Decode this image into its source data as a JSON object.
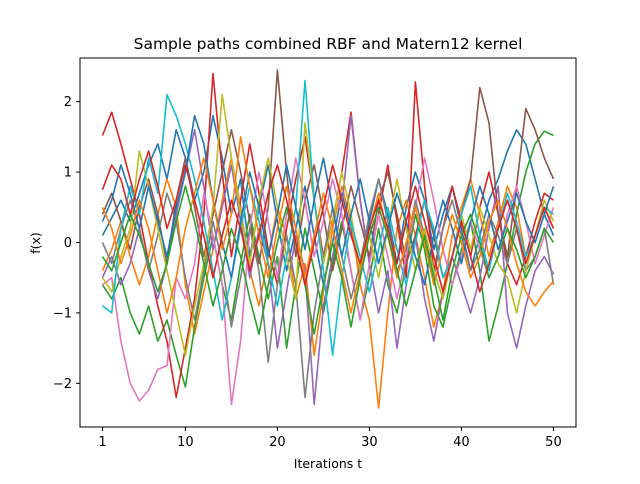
{
  "chart_data": {
    "type": "line",
    "title": "Sample paths combined RBF and Matern12 kernel",
    "xlabel": "Iterations t",
    "ylabel": "f(x)",
    "xlim": [
      -1.45,
      52.45
    ],
    "ylim": [
      -2.62,
      2.62
    ],
    "xticks": [
      1,
      10,
      20,
      30,
      40,
      50
    ],
    "yticks": [
      -2,
      -1,
      0,
      1,
      2
    ],
    "xtick_labels": [
      "1",
      "10",
      "20",
      "30",
      "40",
      "50"
    ],
    "ytick_labels": [
      "−2",
      "−1",
      "0",
      "1",
      "2"
    ],
    "grid": false,
    "legend": false,
    "colors": [
      "#1f77b4",
      "#ff7f0e",
      "#2ca02c",
      "#d62728",
      "#9467bd",
      "#8c564b",
      "#e377c2",
      "#7f7f7f",
      "#bcbd22",
      "#17becf"
    ],
    "x": [
      1,
      2,
      3,
      4,
      5,
      6,
      7,
      8,
      9,
      10,
      11,
      12,
      13,
      14,
      15,
      16,
      17,
      18,
      19,
      20,
      21,
      22,
      23,
      24,
      25,
      26,
      27,
      28,
      29,
      30,
      31,
      32,
      33,
      34,
      35,
      36,
      37,
      38,
      39,
      40,
      41,
      42,
      43,
      44,
      45,
      46,
      47,
      48,
      49,
      50
    ],
    "series": [
      {
        "values": [
          0.1,
          0.35,
          0.6,
          0.3,
          0.7,
          1.1,
          1.4,
          0.9,
          1.6,
          1.2,
          0.6,
          1.0,
          1.8,
          1.2,
          0.4,
          0.9,
          -0.2,
          0.5,
          1.1,
          0.3,
          -0.4,
          0.2,
          0.8,
          0.1,
          -0.6,
          0.0,
          0.7,
          0.2,
          -0.5,
          0.3,
          0.9,
          0.4,
          -0.3,
          0.5,
          1.0,
          0.6,
          -0.1,
          0.4,
          0.8,
          0.2,
          -0.4,
          0.1,
          0.6,
          0.9,
          1.3,
          1.6,
          1.4,
          0.9,
          0.4,
          0.1
        ]
      },
      {
        "values": [
          -0.4,
          -0.1,
          0.3,
          -0.2,
          -0.6,
          -0.2,
          0.4,
          0.9,
          0.5,
          -0.6,
          -1.3,
          -0.7,
          -0.1,
          0.6,
          1.2,
          0.5,
          -0.4,
          -0.9,
          -0.2,
          0.5,
          0.1,
          -0.8,
          -0.3,
          -1.6,
          -0.7,
          0.2,
          0.8,
          0.3,
          -0.6,
          -1.1,
          -2.35,
          -1.0,
          0.2,
          0.6,
          0.1,
          -0.5,
          -1.2,
          -0.7,
          0.1,
          0.5,
          0.9,
          0.4,
          -0.2,
          0.3,
          0.8,
          0.5,
          -0.2,
          0.1,
          0.5,
          0.2
        ]
      },
      {
        "values": [
          -0.6,
          -0.8,
          -0.5,
          -1.0,
          -1.3,
          -0.9,
          -1.4,
          -1.1,
          -1.6,
          -2.05,
          -1.2,
          -0.5,
          0.1,
          -0.6,
          -1.1,
          -0.3,
          0.4,
          -0.2,
          -0.8,
          -0.2,
          -1.5,
          -0.6,
          0.2,
          -0.4,
          -1.0,
          -0.3,
          0.3,
          -0.4,
          -1.1,
          -0.5,
          0.2,
          -0.6,
          -1.0,
          -0.3,
          0.4,
          -0.1,
          -0.9,
          -1.2,
          -0.6,
          -0.1,
          0.3,
          -0.4,
          -1.4,
          -0.9,
          -0.3,
          0.4,
          1.0,
          1.4,
          1.58,
          1.52
        ]
      },
      {
        "values": [
          1.52,
          1.85,
          1.4,
          0.9,
          0.4,
          -0.3,
          -0.9,
          -1.4,
          -2.2,
          -1.5,
          -0.8,
          0.4,
          2.4,
          1.0,
          -0.2,
          0.6,
          1.4,
          0.7,
          -0.1,
          -0.6,
          0.2,
          0.9,
          1.5,
          0.6,
          -0.2,
          0.3,
          1.0,
          1.85,
          0.6,
          -0.3,
          0.4,
          1.1,
          0.3,
          -0.5,
          2.28,
          0.8,
          -0.4,
          0.2,
          0.8,
          0.3,
          -0.2,
          0.5,
          1.0,
          0.4,
          -0.3,
          -0.6,
          -0.2,
          0.3,
          0.7,
          0.6
        ]
      },
      {
        "values": [
          -0.5,
          -0.2,
          -0.6,
          -0.3,
          0.2,
          -0.4,
          -0.8,
          -0.3,
          0.4,
          1.0,
          1.6,
          0.8,
          -0.1,
          0.5,
          1.1,
          0.3,
          -0.5,
          0.2,
          -0.3,
          -1.5,
          -0.7,
          0.1,
          -0.4,
          -2.3,
          -0.9,
          -0.2,
          0.5,
          1.8,
          0.6,
          -0.3,
          -1.0,
          -0.4,
          -1.5,
          -0.6,
          0.1,
          -0.8,
          -1.4,
          -0.7,
          -0.2,
          -0.6,
          -1.0,
          -0.5,
          0.2,
          0.8,
          -1.0,
          -1.5,
          -0.9,
          -0.4,
          -0.2,
          -0.45
        ]
      },
      {
        "values": [
          0.4,
          0.7,
          0.3,
          -0.1,
          0.5,
          0.9,
          0.4,
          -0.3,
          0.6,
          1.2,
          0.5,
          -0.2,
          0.4,
          1.0,
          1.6,
          1.0,
          0.3,
          -0.3,
          0.5,
          2.45,
          1.0,
          -0.2,
          0.6,
          1.1,
          0.4,
          -0.4,
          0.2,
          0.8,
          0.3,
          -0.2,
          0.6,
          1.0,
          0.4,
          -0.3,
          0.1,
          0.6,
          0.1,
          -0.5,
          -0.2,
          0.4,
          0.9,
          2.2,
          1.7,
          0.4,
          -0.2,
          0.8,
          1.9,
          1.6,
          1.2,
          0.9
        ]
      },
      {
        "values": [
          -0.6,
          -0.5,
          -1.4,
          -2.0,
          -2.25,
          -2.1,
          -1.8,
          -1.75,
          -0.5,
          -0.8,
          -0.3,
          0.7,
          0.1,
          -0.6,
          -2.3,
          -1.4,
          0.2,
          1.0,
          0.3,
          -0.5,
          0.4,
          1.2,
          0.6,
          -0.2,
          0.3,
          0.9,
          0.4,
          -0.4,
          -1.1,
          -0.3,
          0.4,
          -0.2,
          -0.8,
          -0.2,
          0.5,
          1.2,
          0.6,
          -0.1,
          -0.6,
          -0.2,
          0.3,
          -0.1,
          -0.5,
          -0.2,
          0.4,
          0.8,
          0.3,
          -0.3,
          0.1,
          0.5
        ]
      },
      {
        "values": [
          0.0,
          -0.3,
          0.2,
          0.6,
          0.2,
          -0.4,
          0.1,
          0.7,
          0.3,
          -0.5,
          -1.1,
          -0.4,
          0.3,
          -0.3,
          -1.2,
          -0.5,
          0.2,
          -0.4,
          -1.7,
          -0.6,
          0.1,
          -0.6,
          -2.2,
          -1.0,
          -0.2,
          0.5,
          -0.2,
          -0.8,
          -0.3,
          0.4,
          0.9,
          0.3,
          -0.4,
          -0.1,
          0.6,
          0.1,
          -0.5,
          0.2,
          0.6,
          0.1,
          -0.4,
          -0.1,
          0.4,
          0.1,
          -0.3,
          0.2,
          -0.4,
          -0.2,
          0.2,
          -0.6
        ]
      },
      {
        "values": [
          -0.5,
          -0.7,
          -0.2,
          0.2,
          1.3,
          0.8,
          0.2,
          -0.4,
          -1.0,
          -1.6,
          -0.9,
          -0.3,
          0.5,
          2.1,
          1.2,
          0.4,
          -0.3,
          0.6,
          1.2,
          0.5,
          -0.2,
          -0.8,
          1.7,
          0.6,
          -0.3,
          0.3,
          1.0,
          0.4,
          -0.4,
          0.1,
          -0.5,
          0.2,
          0.9,
          0.2,
          -0.4,
          0.2,
          -0.4,
          -0.8,
          -0.2,
          0.4,
          -0.1,
          0.5,
          0.1,
          -0.3,
          -0.5,
          -1.0,
          -0.4,
          0.1,
          0.6,
          0.3
        ]
      },
      {
        "values": [
          -0.9,
          -1.0,
          0.2,
          0.8,
          0.4,
          1.2,
          0.7,
          2.1,
          1.8,
          1.4,
          0.9,
          0.3,
          -0.4,
          -1.1,
          -0.5,
          0.2,
          0.8,
          0.3,
          -0.3,
          -0.9,
          -0.2,
          0.5,
          2.3,
          0.6,
          -0.4,
          -1.6,
          -0.5,
          0.3,
          -0.2,
          -0.7,
          -0.1,
          0.5,
          -0.1,
          -0.6,
          0.0,
          0.6,
          0.2,
          -0.5,
          -0.2,
          0.4,
          0.8,
          0.1,
          -0.4,
          0.2,
          0.7,
          0.3,
          -0.2,
          0.1,
          0.5,
          0.4
        ]
      },
      {
        "values": [
          0.3,
          0.6,
          1.1,
          0.7,
          0.2,
          0.8,
          0.3,
          -0.2,
          0.5,
          1.0,
          1.8,
          1.4,
          0.6,
          0.0,
          -0.5,
          0.3,
          1.0,
          0.5,
          -0.2,
          0.4,
          1.1,
          0.5,
          -0.1,
          0.6,
          1.2,
          0.5,
          -0.2,
          0.4,
          0.9,
          0.3,
          -0.3,
          0.2,
          0.7,
          0.3,
          -0.2,
          -0.6,
          0.1,
          0.6,
          0.2,
          -0.3,
          0.3,
          0.8,
          0.4,
          -0.1,
          0.3,
          0.7,
          0.3,
          0.0,
          0.4,
          0.8
        ]
      },
      {
        "values": [
          0.5,
          0.2,
          -0.3,
          0.1,
          0.6,
          0.2,
          -0.4,
          -1.0,
          -0.5,
          0.2,
          0.7,
          1.2,
          0.6,
          -0.1,
          0.4,
          1.5,
          0.8,
          0.1,
          -0.5,
          0.2,
          0.8,
          0.2,
          -0.5,
          0.1,
          0.7,
          0.2,
          -0.4,
          -1.0,
          -0.4,
          0.2,
          0.7,
          0.1,
          -0.5,
          0.0,
          0.5,
          0.0,
          -0.6,
          -0.1,
          0.4,
          0.0,
          -0.5,
          -0.2,
          0.3,
          0.6,
          0.2,
          -0.3,
          -0.7,
          -0.9,
          -0.7,
          -0.55
        ]
      },
      {
        "values": [
          -0.2,
          -0.4,
          0.0,
          0.4,
          0.1,
          -0.3,
          -0.7,
          -0.3,
          0.3,
          0.8,
          0.3,
          -0.3,
          -0.9,
          -0.4,
          0.2,
          -0.2,
          -0.8,
          -1.3,
          -0.6,
          0.0,
          0.5,
          0.0,
          -0.6,
          -1.3,
          -0.6,
          0.0,
          -0.5,
          -1.2,
          -0.5,
          0.1,
          0.5,
          0.1,
          -0.4,
          -0.9,
          -0.4,
          0.1,
          -0.5,
          -1.1,
          -0.4,
          0.1,
          0.4,
          0.0,
          -0.5,
          -0.2,
          0.2,
          -0.1,
          -0.5,
          -0.2,
          0.2,
          0.0
        ]
      },
      {
        "values": [
          0.75,
          1.1,
          0.9,
          0.4,
          0.9,
          1.3,
          0.8,
          0.2,
          0.6,
          1.1,
          0.6,
          0.1,
          -0.5,
          0.1,
          0.6,
          0.2,
          -0.4,
          0.1,
          0.7,
          1.1,
          0.6,
          0.0,
          -0.6,
          0.0,
          0.5,
          1.1,
          0.6,
          0.1,
          -0.3,
          0.2,
          0.6,
          0.2,
          -0.3,
          0.3,
          0.8,
          0.3,
          -0.2,
          -0.7,
          -0.2,
          0.3,
          -0.2,
          -0.7,
          -0.3,
          0.2,
          0.6,
          0.2,
          -0.3,
          0.1,
          0.5,
          0.2
        ]
      }
    ]
  }
}
